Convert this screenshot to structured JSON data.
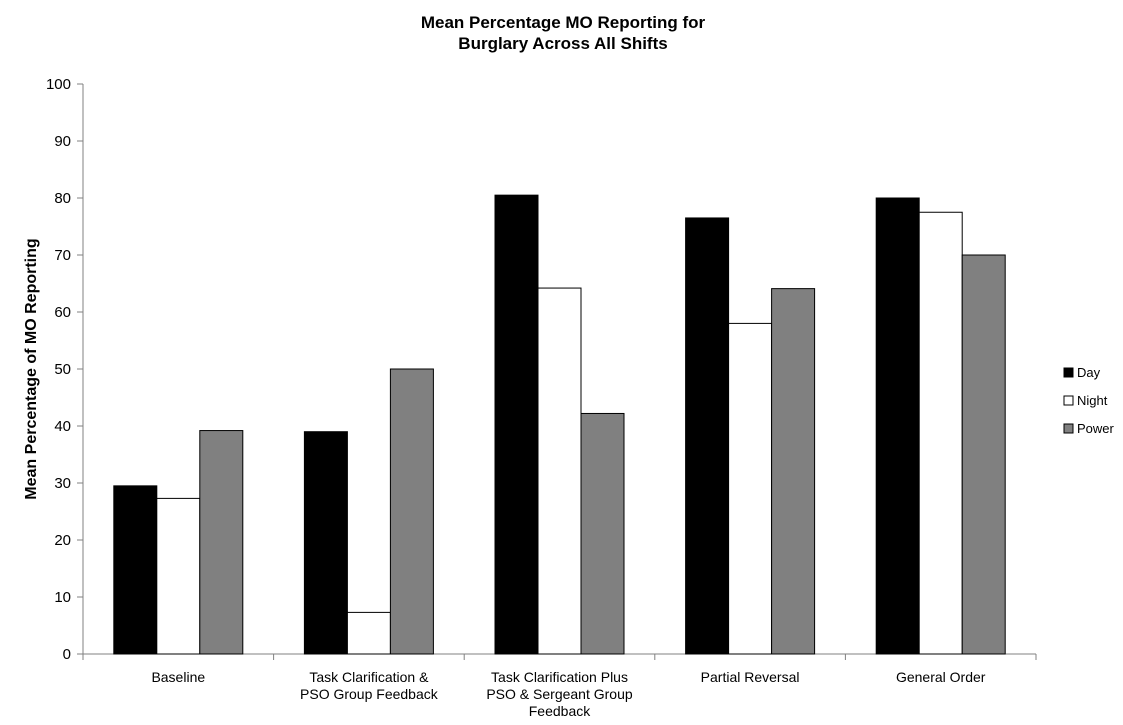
{
  "chart_data": {
    "type": "bar",
    "title_lines": [
      "Mean Percentage MO Reporting for",
      "Burglary Across All Shifts"
    ],
    "xlabel": "",
    "ylabel": "Mean Percentage of MO Reporting",
    "ylim": [
      0,
      100
    ],
    "yticks": [
      0,
      10,
      20,
      30,
      40,
      50,
      60,
      70,
      80,
      90,
      100
    ],
    "categories": [
      [
        "Baseline"
      ],
      [
        "Task Clarification &",
        "PSO Group Feedback"
      ],
      [
        "Task Clarification Plus",
        "PSO & Sergeant Group",
        "Feedback"
      ],
      [
        "Partial Reversal"
      ],
      [
        "General Order"
      ]
    ],
    "series": [
      {
        "name": "Day",
        "color": "#000000",
        "values": [
          29.5,
          39,
          80.5,
          76.5,
          80
        ]
      },
      {
        "name": "Night",
        "color": "#ffffff",
        "values": [
          27.3,
          7.3,
          64.2,
          58,
          77.5
        ]
      },
      {
        "name": "Power",
        "color": "#808080",
        "values": [
          39.2,
          50,
          42.2,
          64.1,
          70
        ]
      }
    ],
    "grid": false,
    "legend": "right"
  }
}
